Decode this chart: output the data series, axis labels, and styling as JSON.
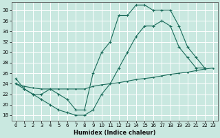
{
  "xlabel": "Humidex (Indice chaleur)",
  "xlim": [
    -0.5,
    23.5
  ],
  "ylim": [
    17,
    39.5
  ],
  "xticks": [
    0,
    1,
    2,
    3,
    4,
    5,
    6,
    7,
    8,
    9,
    10,
    11,
    12,
    13,
    14,
    15,
    16,
    17,
    18,
    19,
    20,
    21,
    22,
    23
  ],
  "yticks": [
    18,
    20,
    22,
    24,
    26,
    28,
    30,
    32,
    34,
    36,
    38
  ],
  "background_color": "#c9e8e0",
  "grid_color": "#b0d8d0",
  "line_color": "#1a6b5a",
  "s1_x": [
    0,
    1,
    2,
    3,
    4,
    5,
    6,
    7,
    8,
    9,
    10,
    11,
    12,
    13,
    14,
    15,
    16,
    17,
    18,
    19,
    20,
    21,
    22
  ],
  "s1_y": [
    25,
    23,
    22,
    22,
    23,
    22,
    21,
    19,
    19,
    26,
    30,
    32,
    37,
    37,
    39,
    39,
    38,
    38,
    38,
    35,
    31,
    29,
    27
  ],
  "s2_x": [
    0,
    1,
    2,
    3,
    4,
    5,
    6,
    7,
    8,
    9,
    10,
    11,
    12,
    13,
    14,
    15,
    16,
    17,
    18,
    19,
    20,
    21,
    22
  ],
  "s2_y": [
    24,
    23,
    22,
    21,
    20,
    19,
    18.5,
    18,
    18,
    19,
    22,
    24,
    27,
    30,
    33,
    35,
    35,
    36,
    35,
    31,
    29,
    27,
    27
  ],
  "s3_x": [
    0,
    1,
    2,
    3,
    4,
    5,
    6,
    7,
    8,
    9,
    10,
    11,
    12,
    13,
    14,
    15,
    16,
    17,
    18,
    19,
    20,
    21,
    22,
    23
  ],
  "s3_y": [
    24,
    23.5,
    23.2,
    23,
    23,
    23,
    23,
    23,
    23,
    23.5,
    23.8,
    24,
    24.2,
    24.5,
    24.8,
    25,
    25.2,
    25.5,
    25.8,
    26,
    26.2,
    26.5,
    26.8,
    27
  ]
}
